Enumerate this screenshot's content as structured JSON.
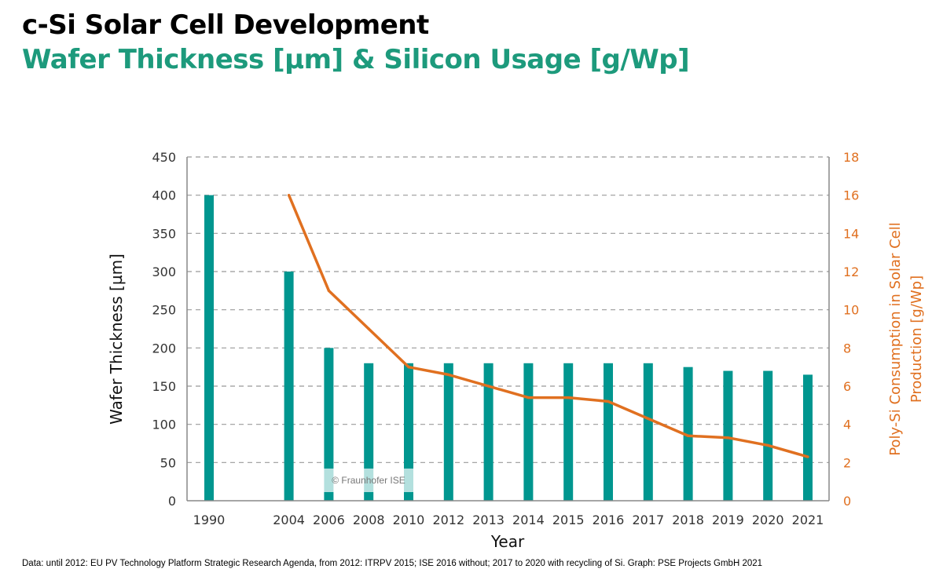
{
  "header": {
    "title": "c-Si Solar Cell Development",
    "subtitle": "Wafer Thickness [µm] & Silicon Usage  [g/Wp]"
  },
  "footnote": "Data: until 2012: EU PV Technology Platform Strategic Research Agenda, from 2012: ITRPV 2015; ISE 2016 without; 2017 to 2020 with recycling of Si. Graph: PSE Projects GmbH 2021",
  "watermark": "© Fraunhofer ISE",
  "chart_data": {
    "type": "bar+line",
    "xlabel": "Year",
    "ylabel": "Wafer Thickness [µm]",
    "y2label_line1": "Poly-Si Consumption in Solar Cell",
    "y2label_line2": "Production [g/Wp]",
    "ylim": [
      0,
      450
    ],
    "y2lim": [
      0,
      18
    ],
    "yticks": [
      0,
      50,
      100,
      150,
      200,
      250,
      300,
      350,
      400,
      450
    ],
    "y2ticks": [
      0,
      2,
      4,
      6,
      8,
      10,
      12,
      14,
      16,
      18
    ],
    "grid": true,
    "categories": [
      "1990",
      "2004",
      "2006",
      "2008",
      "2010",
      "2012",
      "2013",
      "2014",
      "2015",
      "2016",
      "2017",
      "2018",
      "2019",
      "2020",
      "2021"
    ],
    "series": [
      {
        "type": "bar",
        "axis": "left",
        "color": "#00968f",
        "values": [
          400,
          300,
          200,
          180,
          180,
          180,
          180,
          180,
          180,
          180,
          180,
          175,
          170,
          170,
          165
        ]
      },
      {
        "type": "line",
        "axis": "right",
        "color": "#e07020",
        "values": [
          null,
          16,
          11,
          9,
          7,
          6.6,
          6,
          5.4,
          5.4,
          5.2,
          4.3,
          3.4,
          3.3,
          2.9,
          2.3
        ]
      }
    ],
    "colors": {
      "left_axis_text": "#333333",
      "right_axis_text": "#e07020",
      "grid": "#999999"
    }
  }
}
